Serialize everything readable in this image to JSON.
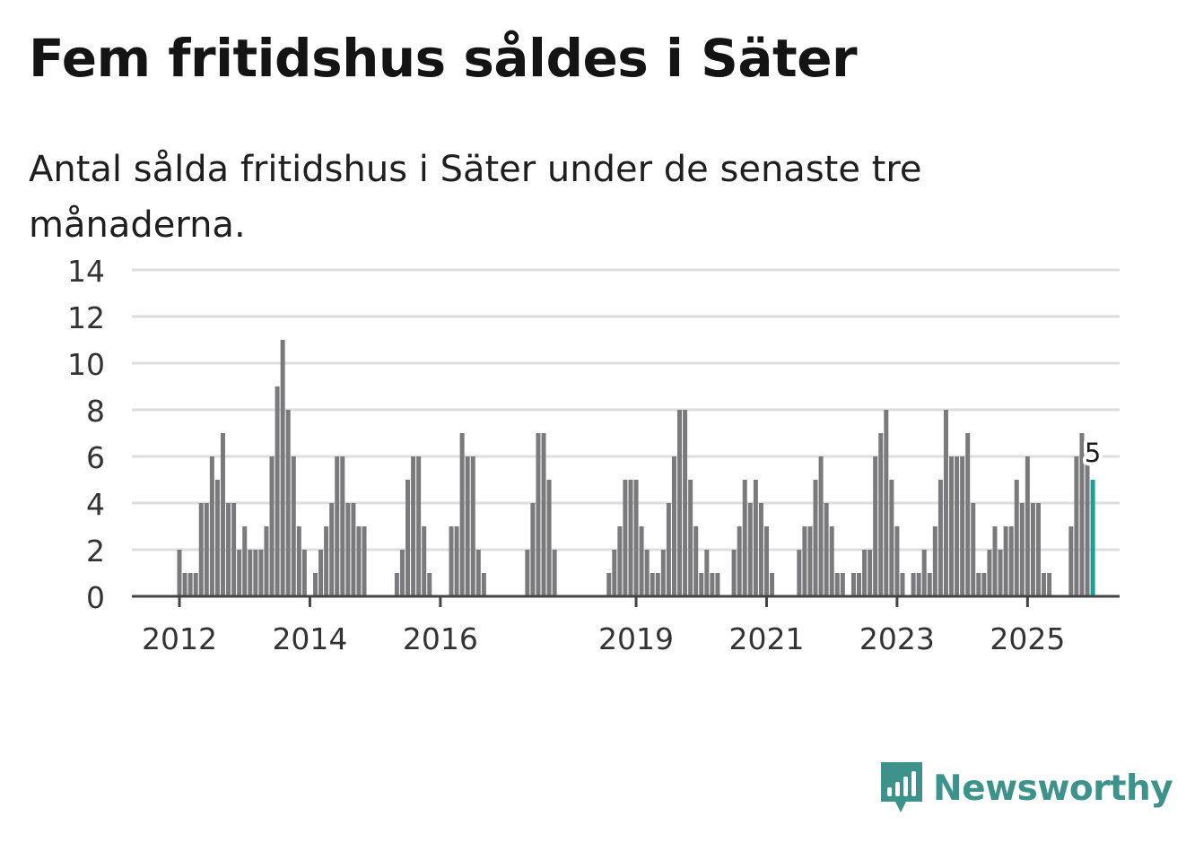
{
  "title": "Fem fritidshus såldes i Säter",
  "subtitle": "Antal sålda fritidshus i Säter under de senaste tre månaderna.",
  "brand": {
    "name": "Newsworthy",
    "color": "#3d938c"
  },
  "colors": {
    "bar": "#7a797b",
    "highlight": "#1a9e96",
    "grid": "#dedede",
    "axis": "#444444"
  },
  "chart_data": {
    "type": "bar",
    "title": "Fem fritidshus såldes i Säter",
    "subtitle": "Antal sålda fritidshus i Säter under de senaste tre månaderna.",
    "xlabel": "",
    "ylabel": "",
    "ylim": [
      0,
      14
    ],
    "yticks": [
      0,
      2,
      4,
      6,
      8,
      10,
      12,
      14
    ],
    "xtick_labels": [
      {
        "label": "2012",
        "index": 0
      },
      {
        "label": "2014",
        "index": 24
      },
      {
        "label": "2016",
        "index": 48
      },
      {
        "label": "2019",
        "index": 84
      },
      {
        "label": "2021",
        "index": 108
      },
      {
        "label": "2023",
        "index": 132
      },
      {
        "label": "2025",
        "index": 156
      }
    ],
    "grid": true,
    "start": "2012-01",
    "frequency": "monthly",
    "highlight_last": true,
    "highlight_label": "5",
    "values": [
      2,
      1,
      1,
      1,
      4,
      4,
      6,
      5,
      7,
      4,
      4,
      2,
      3,
      2,
      2,
      2,
      3,
      6,
      9,
      11,
      8,
      6,
      3,
      2,
      0,
      1,
      2,
      3,
      4,
      6,
      6,
      4,
      4,
      3,
      3,
      0,
      0,
      0,
      0,
      0,
      1,
      2,
      5,
      6,
      6,
      3,
      1,
      0,
      0,
      0,
      3,
      3,
      7,
      6,
      6,
      2,
      1,
      0,
      0,
      0,
      0,
      0,
      0,
      0,
      2,
      4,
      7,
      7,
      5,
      2,
      0,
      0,
      0,
      0,
      0,
      0,
      0,
      0,
      0,
      1,
      2,
      3,
      5,
      5,
      5,
      3,
      2,
      1,
      1,
      2,
      4,
      6,
      8,
      8,
      5,
      3,
      1,
      2,
      1,
      1,
      0,
      0,
      2,
      3,
      5,
      4,
      5,
      4,
      3,
      1,
      0,
      0,
      0,
      0,
      2,
      3,
      3,
      5,
      6,
      4,
      3,
      1,
      1,
      0,
      1,
      1,
      2,
      2,
      6,
      7,
      8,
      5,
      3,
      1,
      0,
      1,
      1,
      2,
      1,
      3,
      5,
      8,
      6,
      6,
      6,
      7,
      4,
      1,
      1,
      2,
      3,
      2,
      3,
      3,
      5,
      4,
      6,
      4,
      4,
      1,
      1,
      0,
      0,
      0,
      3,
      6,
      7,
      6,
      5
    ]
  }
}
